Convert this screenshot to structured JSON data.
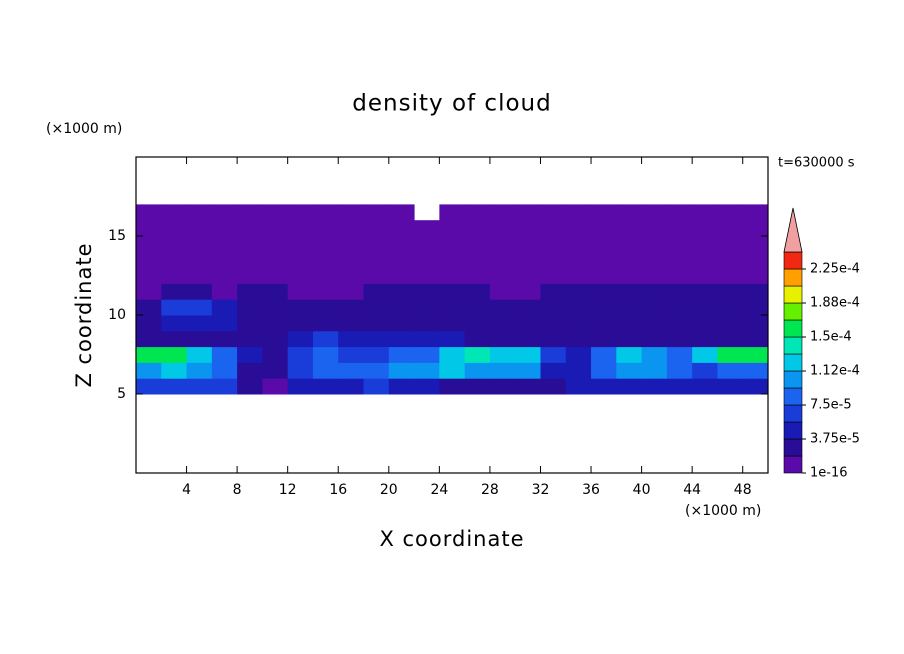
{
  "chart_data": {
    "type": "contour",
    "title": "density of cloud",
    "xlabel": "X coordinate",
    "ylabel": "Z coordinate",
    "x_unit": "(×1000 m)",
    "y_unit": "(×1000 m)",
    "annotation": "t=630000 s",
    "xlim": [
      0,
      50
    ],
    "ylim": [
      0,
      20
    ],
    "xticks": [
      4,
      8,
      12,
      16,
      20,
      24,
      28,
      32,
      36,
      40,
      44,
      48
    ],
    "yticks": [
      5,
      10,
      15
    ],
    "x": [
      1,
      3,
      5,
      7,
      9,
      11,
      13,
      15,
      17,
      19,
      21,
      23,
      25,
      27,
      29,
      31,
      33,
      35,
      37,
      39,
      41,
      43,
      45,
      47,
      49
    ],
    "y": [
      5.5,
      6.5,
      7.5,
      8.5,
      9.5,
      10.5,
      11.5,
      12.5,
      13.5,
      14.5,
      15.5,
      16.5
    ],
    "values": [
      [
        6e-05,
        6e-05,
        7e-05,
        6e-05,
        2e-05,
        1e-05,
        4e-05,
        5e-05,
        5e-05,
        6e-05,
        5e-05,
        4e-05,
        3e-05,
        3e-05,
        3e-05,
        3e-05,
        2e-05,
        4e-05,
        4e-05,
        5e-05,
        5e-05,
        5e-05,
        5e-05,
        4e-05,
        4e-05
      ],
      [
        0.00011,
        0.00012,
        0.0001,
        8e-05,
        3e-05,
        2e-05,
        7e-05,
        8e-05,
        9e-05,
        8e-05,
        0.0001,
        0.00011,
        0.00012,
        0.00011,
        0.0001,
        0.0001,
        5e-05,
        4e-05,
        9e-05,
        0.0001,
        0.0001,
        8e-05,
        7e-05,
        8e-05,
        9e-05
      ],
      [
        0.00016,
        0.00015,
        0.00012,
        9e-05,
        4e-05,
        3e-05,
        6e-05,
        8e-05,
        7e-05,
        7e-05,
        8e-05,
        9e-05,
        0.00012,
        0.00014,
        0.00013,
        0.00012,
        7e-05,
        5e-05,
        9e-05,
        0.00012,
        0.00011,
        9e-05,
        0.00012,
        0.00015,
        0.00016
      ],
      [
        2.5e-05,
        2.5e-05,
        3e-05,
        3e-05,
        2e-05,
        3e-05,
        5e-05,
        6e-05,
        5e-05,
        4e-05,
        4e-05,
        5e-05,
        4e-05,
        3e-05,
        3e-05,
        3e-05,
        2.5e-05,
        3e-05,
        3e-05,
        3e-05,
        2.5e-05,
        2.5e-05,
        3e-05,
        2.5e-05,
        2.5e-05
      ],
      [
        3e-05,
        5e-05,
        5e-05,
        4e-05,
        2.5e-05,
        2e-05,
        3e-05,
        3e-05,
        3e-05,
        2e-05,
        2e-05,
        2e-05,
        2e-05,
        2e-05,
        2e-05,
        2e-05,
        2e-05,
        2e-05,
        2e-05,
        2e-05,
        2e-05,
        2e-05,
        2e-05,
        2e-05,
        2e-05
      ],
      [
        3e-05,
        6e-05,
        6e-05,
        5e-05,
        3e-05,
        2e-05,
        2e-05,
        2e-05,
        2e-05,
        2e-05,
        2e-05,
        2e-05,
        2e-05,
        2e-05,
        2e-05,
        2e-05,
        2e-05,
        2e-05,
        2e-05,
        2e-05,
        2e-05,
        2e-05,
        2e-05,
        2e-05,
        2e-05
      ],
      [
        1e-05,
        2e-05,
        2e-05,
        1e-05,
        2e-05,
        2e-05,
        1e-05,
        1e-05,
        1e-05,
        2e-05,
        2e-05,
        2e-05,
        2e-05,
        2e-05,
        1e-05,
        1e-05,
        2e-05,
        2e-05,
        2e-05,
        2e-05,
        2e-05,
        2e-05,
        2e-05,
        2e-05,
        2e-05
      ],
      [
        5e-06,
        5e-06,
        5e-06,
        5e-06,
        5e-06,
        5e-06,
        5e-06,
        5e-06,
        5e-06,
        5e-06,
        5e-06,
        5e-06,
        5e-06,
        5e-06,
        5e-06,
        5e-06,
        5e-06,
        5e-06,
        5e-06,
        5e-06,
        5e-06,
        5e-06,
        5e-06,
        5e-06,
        5e-06
      ],
      [
        5e-06,
        5e-06,
        5e-06,
        5e-06,
        5e-06,
        5e-06,
        5e-06,
        5e-06,
        5e-06,
        5e-06,
        5e-06,
        5e-06,
        5e-06,
        5e-06,
        5e-06,
        5e-06,
        5e-06,
        5e-06,
        5e-06,
        5e-06,
        5e-06,
        5e-06,
        5e-06,
        5e-06,
        5e-06
      ],
      [
        5e-06,
        5e-06,
        5e-06,
        5e-06,
        5e-06,
        5e-06,
        5e-06,
        5e-06,
        5e-06,
        5e-06,
        5e-06,
        5e-06,
        5e-06,
        5e-06,
        5e-06,
        5e-06,
        5e-06,
        5e-06,
        5e-06,
        5e-06,
        5e-06,
        5e-06,
        5e-06,
        5e-06,
        5e-06
      ],
      [
        5e-06,
        5e-06,
        5e-06,
        5e-06,
        5e-06,
        5e-06,
        5e-06,
        5e-06,
        5e-06,
        5e-06,
        5e-06,
        5e-06,
        5e-06,
        5e-06,
        5e-06,
        5e-06,
        5e-06,
        5e-06,
        5e-06,
        5e-06,
        5e-06,
        5e-06,
        5e-06,
        5e-06,
        5e-06
      ],
      [
        1e-06,
        1e-06,
        1e-06,
        1e-06,
        1e-06,
        1e-06,
        1e-06,
        1e-06,
        1e-06,
        1e-06,
        1e-06,
        null,
        1e-06,
        1e-06,
        1e-06,
        1e-06,
        1e-06,
        1e-06,
        1e-06,
        1e-06,
        1e-06,
        1e-06,
        1e-06,
        1e-06,
        1e-06
      ]
    ],
    "levels": [
      1e-16,
      1.875e-05,
      3.75e-05,
      5.625e-05,
      7.5e-05,
      9.375e-05,
      0.0001125,
      0.00013125,
      0.00015,
      0.00016875,
      0.0001875,
      0.00020625,
      0.000225,
      0.00024375
    ],
    "colors": [
      "#5a0aa8",
      "#2a0d96",
      "#1a1ab4",
      "#1a3cd8",
      "#1a64f0",
      "#0a96f0",
      "#00c8e6",
      "#00e6b4",
      "#00e650",
      "#64f000",
      "#e6f000",
      "#ffa000",
      "#f02814"
    ],
    "extend_color": "#f0a0a0",
    "colorbar_ticks": [
      1e-16,
      {
        "value": 3.75e-05,
        "label": "3.75e-5"
      },
      {
        "value": 7.5e-05,
        "label": "7.5e-5"
      },
      {
        "value": 0.0001125,
        "label": "1.12e-4"
      },
      {
        "value": 0.00015,
        "label": "1.5e-4"
      },
      {
        "value": 0.0001875,
        "label": "1.88e-4"
      },
      {
        "value": 0.000225,
        "label": "2.25e-4"
      }
    ]
  }
}
